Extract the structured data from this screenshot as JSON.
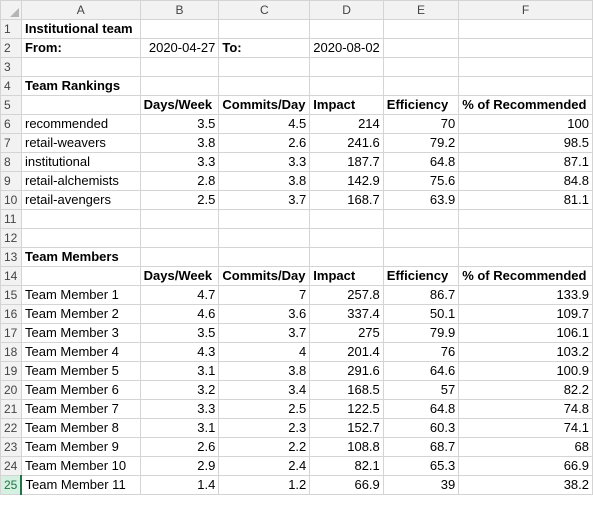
{
  "columns": [
    "A",
    "B",
    "C",
    "D",
    "E",
    "F"
  ],
  "rows": [
    {
      "n": "1",
      "cells": [
        {
          "v": "Institutional team",
          "b": true
        },
        {
          "v": ""
        },
        {
          "v": ""
        },
        {
          "v": ""
        },
        {
          "v": ""
        },
        {
          "v": ""
        }
      ]
    },
    {
      "n": "2",
      "cells": [
        {
          "v": "From:",
          "b": true
        },
        {
          "v": "2020-04-27",
          "r": true
        },
        {
          "v": "To:",
          "b": true
        },
        {
          "v": "2020-08-02",
          "r": true
        },
        {
          "v": ""
        },
        {
          "v": ""
        }
      ]
    },
    {
      "n": "3",
      "cells": [
        {
          "v": ""
        },
        {
          "v": ""
        },
        {
          "v": ""
        },
        {
          "v": ""
        },
        {
          "v": ""
        },
        {
          "v": ""
        }
      ]
    },
    {
      "n": "4",
      "cells": [
        {
          "v": "Team Rankings",
          "b": true
        },
        {
          "v": ""
        },
        {
          "v": ""
        },
        {
          "v": ""
        },
        {
          "v": ""
        },
        {
          "v": ""
        }
      ]
    },
    {
      "n": "5",
      "cells": [
        {
          "v": ""
        },
        {
          "v": "Days/Week",
          "b": true
        },
        {
          "v": "Commits/Day",
          "b": true
        },
        {
          "v": "Impact",
          "b": true
        },
        {
          "v": "Efficiency",
          "b": true
        },
        {
          "v": "% of Recommended",
          "b": true
        }
      ]
    },
    {
      "n": "6",
      "cells": [
        {
          "v": "recommended"
        },
        {
          "v": "3.5",
          "r": true
        },
        {
          "v": "4.5",
          "r": true
        },
        {
          "v": "214",
          "r": true
        },
        {
          "v": "70",
          "r": true
        },
        {
          "v": "100",
          "r": true
        }
      ]
    },
    {
      "n": "7",
      "cells": [
        {
          "v": "retail-weavers"
        },
        {
          "v": "3.8",
          "r": true
        },
        {
          "v": "2.6",
          "r": true
        },
        {
          "v": "241.6",
          "r": true
        },
        {
          "v": "79.2",
          "r": true
        },
        {
          "v": "98.5",
          "r": true
        }
      ]
    },
    {
      "n": "8",
      "cells": [
        {
          "v": "institutional"
        },
        {
          "v": "3.3",
          "r": true
        },
        {
          "v": "3.3",
          "r": true
        },
        {
          "v": "187.7",
          "r": true
        },
        {
          "v": "64.8",
          "r": true
        },
        {
          "v": "87.1",
          "r": true
        }
      ]
    },
    {
      "n": "9",
      "cells": [
        {
          "v": "retail-alchemists"
        },
        {
          "v": "2.8",
          "r": true
        },
        {
          "v": "3.8",
          "r": true
        },
        {
          "v": "142.9",
          "r": true
        },
        {
          "v": "75.6",
          "r": true
        },
        {
          "v": "84.8",
          "r": true
        }
      ]
    },
    {
      "n": "10",
      "cells": [
        {
          "v": "retail-avengers"
        },
        {
          "v": "2.5",
          "r": true
        },
        {
          "v": "3.7",
          "r": true
        },
        {
          "v": "168.7",
          "r": true
        },
        {
          "v": "63.9",
          "r": true
        },
        {
          "v": "81.1",
          "r": true
        }
      ]
    },
    {
      "n": "11",
      "cells": [
        {
          "v": ""
        },
        {
          "v": ""
        },
        {
          "v": ""
        },
        {
          "v": ""
        },
        {
          "v": ""
        },
        {
          "v": ""
        }
      ]
    },
    {
      "n": "12",
      "cells": [
        {
          "v": ""
        },
        {
          "v": ""
        },
        {
          "v": ""
        },
        {
          "v": ""
        },
        {
          "v": ""
        },
        {
          "v": ""
        }
      ]
    },
    {
      "n": "13",
      "cells": [
        {
          "v": "Team Members",
          "b": true
        },
        {
          "v": ""
        },
        {
          "v": ""
        },
        {
          "v": ""
        },
        {
          "v": ""
        },
        {
          "v": ""
        }
      ]
    },
    {
      "n": "14",
      "cells": [
        {
          "v": ""
        },
        {
          "v": "Days/Week",
          "b": true
        },
        {
          "v": "Commits/Day",
          "b": true
        },
        {
          "v": "Impact",
          "b": true
        },
        {
          "v": "Efficiency",
          "b": true
        },
        {
          "v": "% of Recommended",
          "b": true
        }
      ]
    },
    {
      "n": "15",
      "cells": [
        {
          "v": "Team Member 1"
        },
        {
          "v": "4.7",
          "r": true
        },
        {
          "v": "7",
          "r": true
        },
        {
          "v": "257.8",
          "r": true
        },
        {
          "v": "86.7",
          "r": true
        },
        {
          "v": "133.9",
          "r": true
        }
      ]
    },
    {
      "n": "16",
      "cells": [
        {
          "v": "Team Member 2"
        },
        {
          "v": "4.6",
          "r": true
        },
        {
          "v": "3.6",
          "r": true
        },
        {
          "v": "337.4",
          "r": true
        },
        {
          "v": "50.1",
          "r": true
        },
        {
          "v": "109.7",
          "r": true
        }
      ]
    },
    {
      "n": "17",
      "cells": [
        {
          "v": "Team Member 3"
        },
        {
          "v": "3.5",
          "r": true
        },
        {
          "v": "3.7",
          "r": true
        },
        {
          "v": "275",
          "r": true
        },
        {
          "v": "79.9",
          "r": true
        },
        {
          "v": "106.1",
          "r": true
        }
      ]
    },
    {
      "n": "18",
      "cells": [
        {
          "v": "Team Member 4"
        },
        {
          "v": "4.3",
          "r": true
        },
        {
          "v": "4",
          "r": true
        },
        {
          "v": "201.4",
          "r": true
        },
        {
          "v": "76",
          "r": true
        },
        {
          "v": "103.2",
          "r": true
        }
      ]
    },
    {
      "n": "19",
      "cells": [
        {
          "v": "Team Member 5"
        },
        {
          "v": "3.1",
          "r": true
        },
        {
          "v": "3.8",
          "r": true
        },
        {
          "v": "291.6",
          "r": true
        },
        {
          "v": "64.6",
          "r": true
        },
        {
          "v": "100.9",
          "r": true
        }
      ]
    },
    {
      "n": "20",
      "cells": [
        {
          "v": "Team Member 6"
        },
        {
          "v": "3.2",
          "r": true
        },
        {
          "v": "3.4",
          "r": true
        },
        {
          "v": "168.5",
          "r": true
        },
        {
          "v": "57",
          "r": true
        },
        {
          "v": "82.2",
          "r": true
        }
      ]
    },
    {
      "n": "21",
      "cells": [
        {
          "v": "Team Member 7"
        },
        {
          "v": "3.3",
          "r": true
        },
        {
          "v": "2.5",
          "r": true
        },
        {
          "v": "122.5",
          "r": true
        },
        {
          "v": "64.8",
          "r": true
        },
        {
          "v": "74.8",
          "r": true
        }
      ]
    },
    {
      "n": "22",
      "cells": [
        {
          "v": "Team Member 8"
        },
        {
          "v": "3.1",
          "r": true
        },
        {
          "v": "2.3",
          "r": true
        },
        {
          "v": "152.7",
          "r": true
        },
        {
          "v": "60.3",
          "r": true
        },
        {
          "v": "74.1",
          "r": true
        }
      ]
    },
    {
      "n": "23",
      "cells": [
        {
          "v": "Team Member 9"
        },
        {
          "v": "2.6",
          "r": true
        },
        {
          "v": "2.2",
          "r": true
        },
        {
          "v": "108.8",
          "r": true
        },
        {
          "v": "68.7",
          "r": true
        },
        {
          "v": "68",
          "r": true
        }
      ]
    },
    {
      "n": "24",
      "cells": [
        {
          "v": "Team Member 10"
        },
        {
          "v": "2.9",
          "r": true
        },
        {
          "v": "2.4",
          "r": true
        },
        {
          "v": "82.1",
          "r": true
        },
        {
          "v": "65.3",
          "r": true
        },
        {
          "v": "66.9",
          "r": true
        }
      ]
    },
    {
      "n": "25",
      "cells": [
        {
          "v": "Team Member 11"
        },
        {
          "v": "1.4",
          "r": true
        },
        {
          "v": "1.2",
          "r": true
        },
        {
          "v": "66.9",
          "r": true
        },
        {
          "v": "39",
          "r": true
        },
        {
          "v": "38.2",
          "r": true
        }
      ]
    }
  ],
  "active_row": "25",
  "colors": {
    "header_bg": "#f2f2f2",
    "gridline": "#d4d4d4",
    "active_accent": "#217346"
  }
}
